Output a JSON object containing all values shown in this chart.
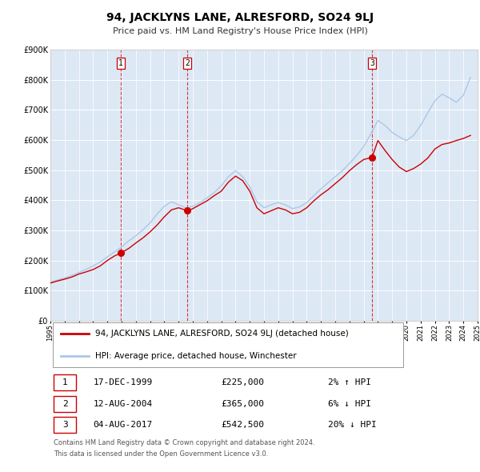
{
  "title": "94, JACKLYNS LANE, ALRESFORD, SO24 9LJ",
  "subtitle": "Price paid vs. HM Land Registry's House Price Index (HPI)",
  "legend_label_red": "94, JACKLYNS LANE, ALRESFORD, SO24 9LJ (detached house)",
  "legend_label_blue": "HPI: Average price, detached house, Winchester",
  "ylim": [
    0,
    900000
  ],
  "yticks": [
    0,
    100000,
    200000,
    300000,
    400000,
    500000,
    600000,
    700000,
    800000,
    900000
  ],
  "ytick_labels": [
    "£0",
    "£100K",
    "£200K",
    "£300K",
    "£400K",
    "£500K",
    "£600K",
    "£700K",
    "£800K",
    "£900K"
  ],
  "x_start_year": 1995,
  "x_end_year": 2025,
  "background_color": "#ffffff",
  "chart_bg_color": "#dde8f5",
  "grid_color": "#ffffff",
  "red_color": "#cc0000",
  "blue_color": "#aac8e8",
  "marker_color": "#cc0000",
  "sales": [
    {
      "date_num": 1999.96,
      "price": 225000,
      "label": "1"
    },
    {
      "date_num": 2004.62,
      "price": 365000,
      "label": "2"
    },
    {
      "date_num": 2017.59,
      "price": 542500,
      "label": "3"
    }
  ],
  "vlines": [
    {
      "x": 1999.96
    },
    {
      "x": 2004.62
    },
    {
      "x": 2017.59
    }
  ],
  "table_rows": [
    {
      "num": "1",
      "date": "17-DEC-1999",
      "price": "£225,000",
      "hpi": "2% ↑ HPI"
    },
    {
      "num": "2",
      "date": "12-AUG-2004",
      "price": "£365,000",
      "hpi": "6% ↓ HPI"
    },
    {
      "num": "3",
      "date": "04-AUG-2017",
      "price": "£542,500",
      "hpi": "20% ↓ HPI"
    }
  ],
  "footnote1": "Contains HM Land Registry data © Crown copyright and database right 2024.",
  "footnote2": "This data is licensed under the Open Government Licence v3.0.",
  "red_line_data": {
    "years": [
      1995.0,
      1995.5,
      1996.0,
      1996.5,
      1997.0,
      1997.5,
      1998.0,
      1998.5,
      1999.0,
      1999.5,
      1999.96,
      2000.5,
      2001.0,
      2001.5,
      2002.0,
      2002.5,
      2003.0,
      2003.5,
      2004.0,
      2004.62,
      2005.0,
      2005.5,
      2006.0,
      2006.5,
      2007.0,
      2007.5,
      2008.0,
      2008.5,
      2009.0,
      2009.5,
      2010.0,
      2010.5,
      2011.0,
      2011.5,
      2012.0,
      2012.5,
      2013.0,
      2013.5,
      2014.0,
      2014.5,
      2015.0,
      2015.5,
      2016.0,
      2016.5,
      2017.0,
      2017.59,
      2018.0,
      2018.5,
      2019.0,
      2019.5,
      2020.0,
      2020.5,
      2021.0,
      2021.5,
      2022.0,
      2022.5,
      2023.0,
      2023.5,
      2024.0,
      2024.5
    ],
    "values": [
      125000,
      132000,
      138000,
      145000,
      155000,
      162000,
      170000,
      182000,
      200000,
      215000,
      225000,
      240000,
      258000,
      275000,
      295000,
      318000,
      345000,
      368000,
      375000,
      365000,
      372000,
      385000,
      398000,
      415000,
      430000,
      460000,
      480000,
      465000,
      430000,
      375000,
      355000,
      365000,
      375000,
      368000,
      355000,
      360000,
      375000,
      398000,
      418000,
      435000,
      455000,
      475000,
      498000,
      518000,
      535000,
      542500,
      598000,
      565000,
      535000,
      510000,
      495000,
      505000,
      520000,
      540000,
      570000,
      585000,
      590000,
      598000,
      605000,
      615000
    ]
  },
  "blue_line_data": {
    "years": [
      1995.0,
      1995.5,
      1996.0,
      1996.5,
      1997.0,
      1997.5,
      1998.0,
      1998.5,
      1999.0,
      1999.5,
      2000.0,
      2000.5,
      2001.0,
      2001.5,
      2002.0,
      2002.5,
      2003.0,
      2003.5,
      2004.0,
      2004.5,
      2005.0,
      2005.5,
      2006.0,
      2006.5,
      2007.0,
      2007.5,
      2008.0,
      2008.5,
      2009.0,
      2009.5,
      2010.0,
      2010.5,
      2011.0,
      2011.5,
      2012.0,
      2012.5,
      2013.0,
      2013.5,
      2014.0,
      2014.5,
      2015.0,
      2015.5,
      2016.0,
      2016.5,
      2017.0,
      2017.5,
      2018.0,
      2018.5,
      2019.0,
      2019.5,
      2020.0,
      2020.5,
      2021.0,
      2021.5,
      2022.0,
      2022.5,
      2023.0,
      2023.5,
      2024.0,
      2024.5
    ],
    "values": [
      128000,
      135000,
      142000,
      150000,
      160000,
      170000,
      182000,
      195000,
      212000,
      228000,
      245000,
      265000,
      282000,
      302000,
      325000,
      355000,
      380000,
      395000,
      385000,
      375000,
      380000,
      392000,
      408000,
      425000,
      448000,
      478000,
      498000,
      478000,
      445000,
      395000,
      375000,
      385000,
      392000,
      385000,
      372000,
      378000,
      392000,
      415000,
      438000,
      458000,
      478000,
      498000,
      522000,
      548000,
      578000,
      620000,
      665000,
      648000,
      625000,
      610000,
      598000,
      615000,
      648000,
      690000,
      730000,
      752000,
      740000,
      725000,
      748000,
      808000
    ]
  }
}
